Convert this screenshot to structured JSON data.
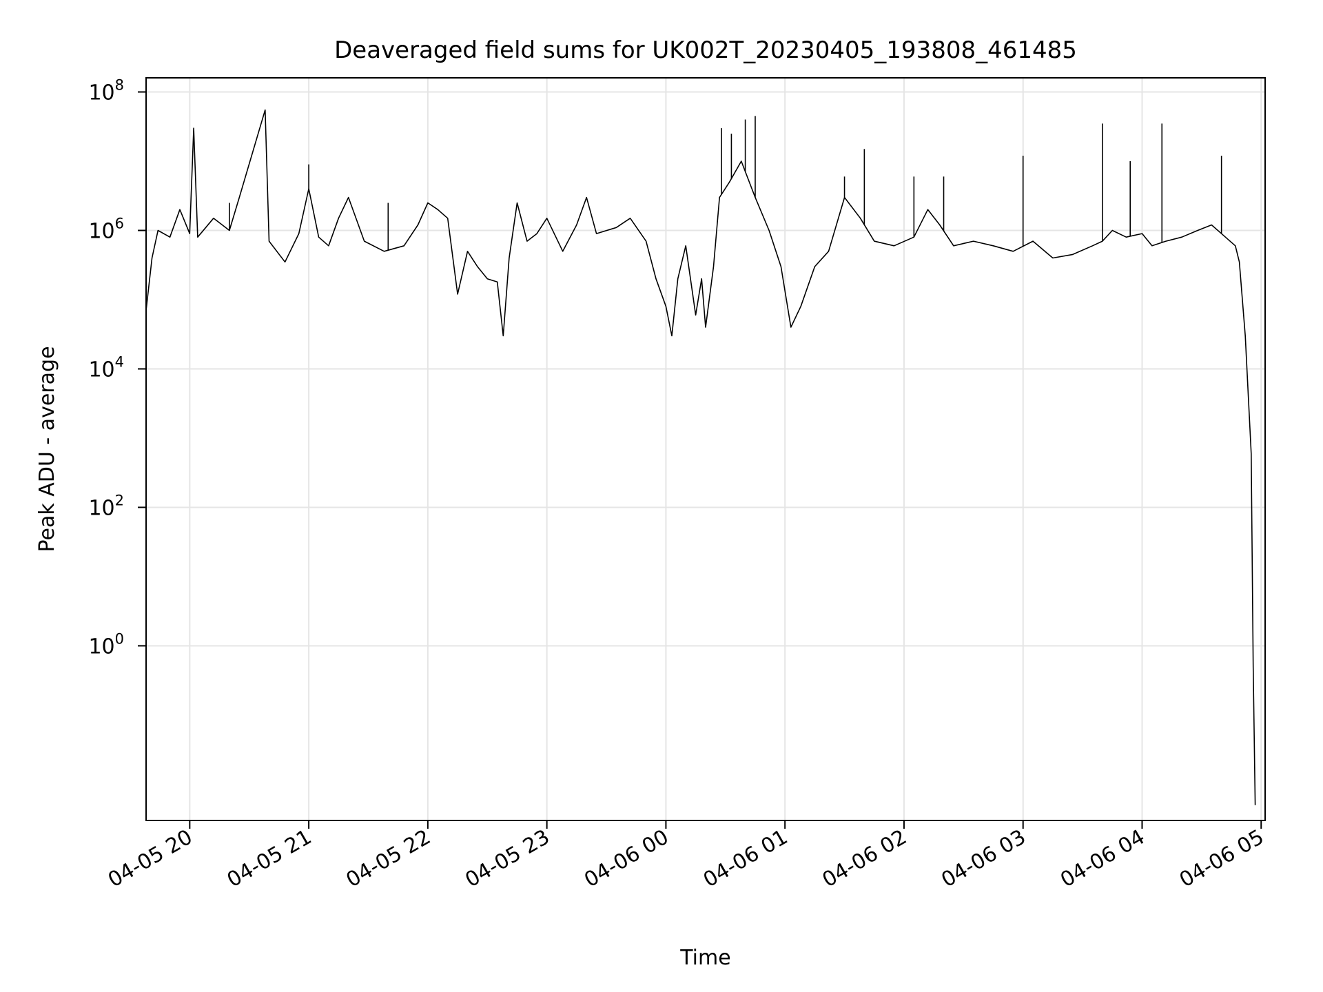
{
  "chart_data": {
    "type": "line",
    "title": "Deaveraged field sums for UK002T_20230405_193808_461485",
    "xlabel": "Time",
    "ylabel": "Peak ADU - average",
    "yscale": "log",
    "ylim": [
      0.003,
      160000000.0
    ],
    "xlim": [
      "2023-04-05 19:38",
      "2023-04-06 05:02"
    ],
    "grid": true,
    "line_color": "#000000",
    "x_ticks": [
      {
        "t": "2023-04-05 20:00",
        "label": "04-05 20"
      },
      {
        "t": "2023-04-05 21:00",
        "label": "04-05 21"
      },
      {
        "t": "2023-04-05 22:00",
        "label": "04-05 22"
      },
      {
        "t": "2023-04-05 23:00",
        "label": "04-05 23"
      },
      {
        "t": "2023-04-06 00:00",
        "label": "04-06 00"
      },
      {
        "t": "2023-04-06 01:00",
        "label": "04-06 01"
      },
      {
        "t": "2023-04-06 02:00",
        "label": "04-06 02"
      },
      {
        "t": "2023-04-06 03:00",
        "label": "04-06 03"
      },
      {
        "t": "2023-04-06 04:00",
        "label": "04-06 04"
      },
      {
        "t": "2023-04-06 05:00",
        "label": "04-06 05"
      }
    ],
    "y_ticks": [
      {
        "value": 1,
        "base": "10",
        "exp": "0"
      },
      {
        "value": 100,
        "base": "10",
        "exp": "2"
      },
      {
        "value": 10000,
        "base": "10",
        "exp": "4"
      },
      {
        "value": 1000000,
        "base": "10",
        "exp": "6"
      },
      {
        "value": 100000000,
        "base": "10",
        "exp": "8"
      }
    ],
    "series": [
      {
        "points": [
          [
            "2023-04-05 19:38",
            70000
          ],
          [
            "2023-04-05 19:41",
            400000
          ],
          [
            "2023-04-05 19:44",
            1000000
          ],
          [
            "2023-04-05 19:50",
            800000
          ],
          [
            "2023-04-05 19:55",
            2000000
          ],
          [
            "2023-04-05 20:00",
            900000
          ],
          [
            "2023-04-05 20:02",
            30000000
          ],
          [
            "2023-04-05 20:04",
            800000
          ],
          [
            "2023-04-05 20:12",
            1500000
          ],
          [
            "2023-04-05 20:20",
            1000000
          ],
          [
            "2023-04-05 20:25",
            3000000
          ],
          [
            "2023-04-05 20:38",
            55000000
          ],
          [
            "2023-04-05 20:40",
            700000
          ],
          [
            "2023-04-05 20:48",
            350000
          ],
          [
            "2023-04-05 20:55",
            900000
          ],
          [
            "2023-04-05 21:00",
            4000000
          ],
          [
            "2023-04-05 21:05",
            800000
          ],
          [
            "2023-04-05 21:10",
            600000
          ],
          [
            "2023-04-05 21:15",
            1500000
          ],
          [
            "2023-04-05 21:20",
            3000000
          ],
          [
            "2023-04-05 21:28",
            700000
          ],
          [
            "2023-04-05 21:38",
            500000
          ],
          [
            "2023-04-05 21:48",
            600000
          ],
          [
            "2023-04-05 21:55",
            1200000
          ],
          [
            "2023-04-05 22:00",
            2500000
          ],
          [
            "2023-04-05 22:05",
            2000000
          ],
          [
            "2023-04-05 22:10",
            1500000
          ],
          [
            "2023-04-05 22:15",
            120000
          ],
          [
            "2023-04-05 22:20",
            500000
          ],
          [
            "2023-04-05 22:25",
            300000
          ],
          [
            "2023-04-05 22:30",
            200000
          ],
          [
            "2023-04-05 22:35",
            180000
          ],
          [
            "2023-04-05 22:38",
            30000
          ],
          [
            "2023-04-05 22:41",
            400000
          ],
          [
            "2023-04-05 22:45",
            2500000
          ],
          [
            "2023-04-05 22:50",
            700000
          ],
          [
            "2023-04-05 22:55",
            900000
          ],
          [
            "2023-04-05 23:00",
            1500000
          ],
          [
            "2023-04-05 23:08",
            500000
          ],
          [
            "2023-04-05 23:15",
            1200000
          ],
          [
            "2023-04-05 23:20",
            3000000
          ],
          [
            "2023-04-05 23:25",
            900000
          ],
          [
            "2023-04-05 23:35",
            1100000
          ],
          [
            "2023-04-05 23:42",
            1500000
          ],
          [
            "2023-04-05 23:50",
            700000
          ],
          [
            "2023-04-05 23:55",
            200000
          ],
          [
            "2023-04-06 00:00",
            80000
          ],
          [
            "2023-04-06 00:03",
            30000
          ],
          [
            "2023-04-06 00:06",
            200000
          ],
          [
            "2023-04-06 00:10",
            600000
          ],
          [
            "2023-04-06 00:15",
            60000
          ],
          [
            "2023-04-06 00:18",
            200000
          ],
          [
            "2023-04-06 00:20",
            40000
          ],
          [
            "2023-04-06 00:24",
            300000
          ],
          [
            "2023-04-06 00:27",
            3000000
          ],
          [
            "2023-04-06 00:32",
            5000000
          ],
          [
            "2023-04-06 00:38",
            10000000
          ],
          [
            "2023-04-06 00:45",
            3000000
          ],
          [
            "2023-04-06 00:52",
            1000000
          ],
          [
            "2023-04-06 00:58",
            300000
          ],
          [
            "2023-04-06 01:03",
            40000
          ],
          [
            "2023-04-06 01:08",
            80000
          ],
          [
            "2023-04-06 01:15",
            300000
          ],
          [
            "2023-04-06 01:22",
            500000
          ],
          [
            "2023-04-06 01:30",
            3000000
          ],
          [
            "2023-04-06 01:38",
            1500000
          ],
          [
            "2023-04-06 01:45",
            700000
          ],
          [
            "2023-04-06 01:55",
            600000
          ],
          [
            "2023-04-06 02:05",
            800000
          ],
          [
            "2023-04-06 02:12",
            2000000
          ],
          [
            "2023-04-06 02:18",
            1200000
          ],
          [
            "2023-04-06 02:25",
            600000
          ],
          [
            "2023-04-06 02:35",
            700000
          ],
          [
            "2023-04-06 02:45",
            600000
          ],
          [
            "2023-04-06 02:55",
            500000
          ],
          [
            "2023-04-06 03:05",
            700000
          ],
          [
            "2023-04-06 03:15",
            400000
          ],
          [
            "2023-04-06 03:25",
            450000
          ],
          [
            "2023-04-06 03:35",
            600000
          ],
          [
            "2023-04-06 03:40",
            700000
          ],
          [
            "2023-04-06 03:45",
            1000000
          ],
          [
            "2023-04-06 03:52",
            800000
          ],
          [
            "2023-04-06 04:00",
            900000
          ],
          [
            "2023-04-06 04:05",
            600000
          ],
          [
            "2023-04-06 04:12",
            700000
          ],
          [
            "2023-04-06 04:20",
            800000
          ],
          [
            "2023-04-06 04:28",
            1000000
          ],
          [
            "2023-04-06 04:35",
            1200000
          ],
          [
            "2023-04-06 04:42",
            800000
          ],
          [
            "2023-04-06 04:47",
            600000
          ],
          [
            "2023-04-06 04:49",
            350000
          ],
          [
            "2023-04-06 04:52",
            30000
          ],
          [
            "2023-04-06 04:55",
            600
          ],
          [
            "2023-04-06 04:56",
            0.5
          ],
          [
            "2023-04-06 04:57",
            0.005
          ]
        ],
        "spikes": [
          [
            "2023-04-05 20:02",
            30000000
          ],
          [
            "2023-04-05 20:20",
            2500000
          ],
          [
            "2023-04-05 20:38",
            55000000
          ],
          [
            "2023-04-05 21:00",
            9000000
          ],
          [
            "2023-04-05 21:40",
            2500000
          ],
          [
            "2023-04-06 00:28",
            30000000
          ],
          [
            "2023-04-06 00:33",
            25000000
          ],
          [
            "2023-04-06 00:40",
            40000000
          ],
          [
            "2023-04-06 00:45",
            45000000
          ],
          [
            "2023-04-06 01:30",
            6000000
          ],
          [
            "2023-04-06 01:40",
            15000000
          ],
          [
            "2023-04-06 02:05",
            6000000
          ],
          [
            "2023-04-06 02:20",
            6000000
          ],
          [
            "2023-04-06 03:00",
            12000000
          ],
          [
            "2023-04-06 03:40",
            35000000
          ],
          [
            "2023-04-06 03:54",
            10000000
          ],
          [
            "2023-04-06 04:10",
            35000000
          ],
          [
            "2023-04-06 04:40",
            12000000
          ]
        ]
      }
    ]
  }
}
